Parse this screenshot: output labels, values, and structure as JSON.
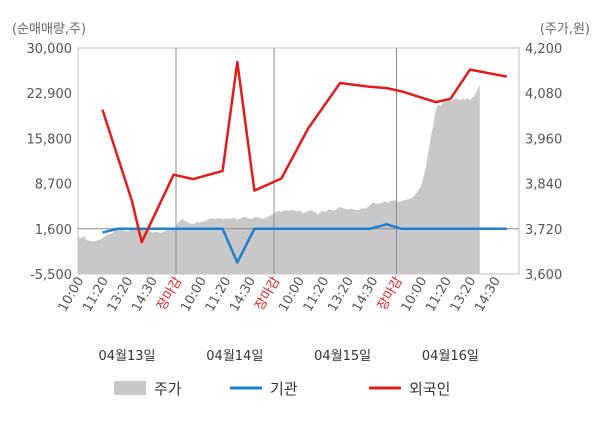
{
  "chart_data": {
    "type": "line",
    "left_axis_unit": "(순매매량,주)",
    "right_axis_unit": "(주가,원)",
    "left_axis": {
      "min": -5500,
      "max": 30000,
      "ticks": [
        "30,000",
        "22,900",
        "15,800",
        "8,700",
        "1,600",
        "-5,500"
      ],
      "tick_values": [
        30000,
        22900,
        15800,
        8700,
        1600,
        -5500
      ]
    },
    "right_axis": {
      "min": 3600,
      "max": 4200,
      "ticks": [
        "4,200",
        "4,080",
        "3,960",
        "3,840",
        "3,720",
        "3,600"
      ],
      "tick_values": [
        4200,
        4080,
        3960,
        3840,
        3720,
        3600
      ]
    },
    "x_ticks": [
      {
        "label": "10:00",
        "pos": 0,
        "highlight": false
      },
      {
        "label": "11:20",
        "pos": 1,
        "highlight": false
      },
      {
        "label": "13:20",
        "pos": 2,
        "highlight": false
      },
      {
        "label": "14:30",
        "pos": 3,
        "highlight": false
      },
      {
        "label": "장마감",
        "pos": 4,
        "highlight": true
      },
      {
        "label": "10:00",
        "pos": 5,
        "highlight": false
      },
      {
        "label": "11:20",
        "pos": 6,
        "highlight": false
      },
      {
        "label": "14:30",
        "pos": 7,
        "highlight": false
      },
      {
        "label": "장마감",
        "pos": 8,
        "highlight": true
      },
      {
        "label": "10:00",
        "pos": 9,
        "highlight": false
      },
      {
        "label": "11:20",
        "pos": 10,
        "highlight": false
      },
      {
        "label": "13:20",
        "pos": 11,
        "highlight": false
      },
      {
        "label": "14:30",
        "pos": 12,
        "highlight": false
      },
      {
        "label": "장마감",
        "pos": 13,
        "highlight": true
      },
      {
        "label": "10:00",
        "pos": 14,
        "highlight": false
      },
      {
        "label": "11:20",
        "pos": 15,
        "highlight": false
      },
      {
        "label": "13:20",
        "pos": 16,
        "highlight": false
      },
      {
        "label": "14:30",
        "pos": 17,
        "highlight": false
      }
    ],
    "dates": [
      {
        "label": "04월13일",
        "pos": 2.0
      },
      {
        "label": "04월14일",
        "pos": 6.4
      },
      {
        "label": "04월15일",
        "pos": 10.8
      },
      {
        "label": "04월16일",
        "pos": 15.2
      }
    ],
    "day_separators": [
      4,
      8,
      13
    ],
    "price_series": {
      "name": "주가",
      "axis": "right",
      "color": "#c8c8c8",
      "points": [
        [
          0.0,
          3699
        ],
        [
          0.1,
          3695
        ],
        [
          0.25,
          3700
        ],
        [
          0.35,
          3690
        ],
        [
          0.5,
          3688
        ],
        [
          0.65,
          3686
        ],
        [
          0.8,
          3690
        ],
        [
          0.95,
          3693
        ],
        [
          1.1,
          3700
        ],
        [
          1.25,
          3705
        ],
        [
          1.4,
          3708
        ],
        [
          1.55,
          3720
        ],
        [
          1.7,
          3716
        ],
        [
          1.85,
          3718
        ],
        [
          2.0,
          3712
        ],
        [
          2.15,
          3718
        ],
        [
          2.3,
          3722
        ],
        [
          2.45,
          3716
        ],
        [
          2.6,
          3719
        ],
        [
          2.75,
          3718
        ],
        [
          2.9,
          3713
        ],
        [
          3.05,
          3710
        ],
        [
          3.2,
          3712
        ],
        [
          3.35,
          3708
        ],
        [
          3.5,
          3712
        ],
        [
          3.65,
          3718
        ],
        [
          3.8,
          3716
        ],
        [
          3.95,
          3721
        ],
        [
          4.1,
          3738
        ],
        [
          4.25,
          3745
        ],
        [
          4.4,
          3741
        ],
        [
          4.55,
          3735
        ],
        [
          4.7,
          3732
        ],
        [
          4.85,
          3738
        ],
        [
          5.0,
          3737
        ],
        [
          5.15,
          3740
        ],
        [
          5.3,
          3745
        ],
        [
          5.45,
          3748
        ],
        [
          5.6,
          3746
        ],
        [
          5.75,
          3749
        ],
        [
          5.9,
          3745
        ],
        [
          6.05,
          3748
        ],
        [
          6.2,
          3746
        ],
        [
          6.35,
          3750
        ],
        [
          6.5,
          3744
        ],
        [
          6.65,
          3748
        ],
        [
          6.8,
          3752
        ],
        [
          6.95,
          3748
        ],
        [
          7.1,
          3746
        ],
        [
          7.25,
          3752
        ],
        [
          7.4,
          3750
        ],
        [
          7.55,
          3746
        ],
        [
          7.7,
          3751
        ],
        [
          7.85,
          3755
        ],
        [
          8.0,
          3760
        ],
        [
          8.15,
          3768
        ],
        [
          8.3,
          3765
        ],
        [
          8.45,
          3770
        ],
        [
          8.6,
          3768
        ],
        [
          8.75,
          3771
        ],
        [
          8.9,
          3766
        ],
        [
          9.05,
          3768
        ],
        [
          9.2,
          3762
        ],
        [
          9.35,
          3766
        ],
        [
          9.5,
          3770
        ],
        [
          9.65,
          3764
        ],
        [
          9.8,
          3758
        ],
        [
          9.95,
          3768
        ],
        [
          10.1,
          3765
        ],
        [
          10.25,
          3772
        ],
        [
          10.4,
          3768
        ],
        [
          10.55,
          3772
        ],
        [
          10.7,
          3778
        ],
        [
          10.85,
          3774
        ],
        [
          11.0,
          3771
        ],
        [
          11.15,
          3774
        ],
        [
          11.3,
          3770
        ],
        [
          11.45,
          3770
        ],
        [
          11.6,
          3774
        ],
        [
          11.75,
          3773
        ],
        [
          11.9,
          3782
        ],
        [
          12.05,
          3790
        ],
        [
          12.2,
          3786
        ],
        [
          12.35,
          3788
        ],
        [
          12.5,
          3793
        ],
        [
          12.65,
          3790
        ],
        [
          12.8,
          3795
        ],
        [
          12.95,
          3795
        ],
        [
          13.1,
          3791
        ],
        [
          13.25,
          3795
        ],
        [
          13.4,
          3797
        ],
        [
          13.55,
          3799
        ],
        [
          13.7,
          3806
        ],
        [
          13.85,
          3818
        ],
        [
          14.0,
          3834
        ],
        [
          14.1,
          3855
        ],
        [
          14.2,
          3885
        ],
        [
          14.3,
          3925
        ],
        [
          14.4,
          3965
        ],
        [
          14.5,
          3995
        ],
        [
          14.6,
          4035
        ],
        [
          14.7,
          4050
        ],
        [
          14.8,
          4045
        ],
        [
          14.9,
          4055
        ],
        [
          15.0,
          4062
        ],
        [
          15.1,
          4068
        ],
        [
          15.2,
          4058
        ],
        [
          15.3,
          4062
        ],
        [
          15.4,
          4067
        ],
        [
          15.5,
          4065
        ],
        [
          15.6,
          4060
        ],
        [
          15.7,
          4066
        ],
        [
          15.8,
          4063
        ],
        [
          15.9,
          4068
        ],
        [
          16.0,
          4062
        ],
        [
          16.1,
          4069
        ],
        [
          16.2,
          4075
        ],
        [
          16.3,
          4090
        ],
        [
          16.4,
          4101
        ]
      ]
    },
    "series": [
      {
        "name": "기관",
        "axis": "left",
        "color": "#1f7fd0",
        "points": [
          [
            1.0,
            1000
          ],
          [
            1.6,
            1600
          ],
          [
            2.0,
            1600
          ],
          [
            5.9,
            1600
          ],
          [
            6.5,
            -3700
          ],
          [
            7.2,
            1600
          ],
          [
            9.4,
            1600
          ],
          [
            11.9,
            1600
          ],
          [
            12.6,
            2300
          ],
          [
            13.2,
            1600
          ],
          [
            16.0,
            1600
          ],
          [
            17.5,
            1600
          ]
        ]
      },
      {
        "name": "외국인",
        "axis": "left",
        "color": "#e21b1b",
        "points": [
          [
            1.0,
            20300
          ],
          [
            2.2,
            6000
          ],
          [
            2.6,
            -500
          ],
          [
            3.9,
            10100
          ],
          [
            4.7,
            9400
          ],
          [
            5.9,
            10700
          ],
          [
            6.5,
            27800
          ],
          [
            7.2,
            7600
          ],
          [
            8.3,
            9500
          ],
          [
            9.4,
            17400
          ],
          [
            10.7,
            24500
          ],
          [
            11.9,
            23900
          ],
          [
            12.6,
            23700
          ],
          [
            13.2,
            23200
          ],
          [
            14.6,
            21500
          ],
          [
            15.2,
            22000
          ],
          [
            16.0,
            26600
          ],
          [
            17.5,
            25500
          ]
        ]
      }
    ],
    "legend": {
      "placement": "bottom",
      "items": [
        {
          "label": "주가",
          "color": "#c8c8c8",
          "kind": "box"
        },
        {
          "label": "기관",
          "color": "#1f7fd0",
          "kind": "line"
        },
        {
          "label": "외국인",
          "color": "#e21b1b",
          "kind": "line"
        }
      ]
    }
  }
}
